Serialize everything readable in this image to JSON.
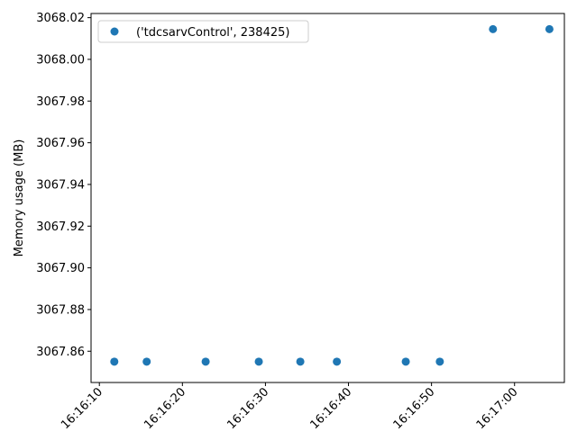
{
  "chart_data": {
    "type": "scatter",
    "title": "",
    "xlabel": "",
    "ylabel": "Memory usage (MB)",
    "x_is_time": true,
    "xlim": [
      "16:16:09",
      "16:17:06"
    ],
    "ylim": [
      3067.845,
      3068.022
    ],
    "x_ticks": [
      "16:16:10",
      "16:16:20",
      "16:16:30",
      "16:16:40",
      "16:16:50",
      "16:17:00"
    ],
    "y_ticks": [
      "3067.86",
      "3067.88",
      "3067.90",
      "3067.92",
      "3067.94",
      "3067.96",
      "3067.98",
      "3068.00",
      "3068.02"
    ],
    "grid": false,
    "legend_position": "top-left",
    "series": [
      {
        "name": "('tdcsarvControl', 238425)",
        "color": "#1f77b4",
        "points": [
          {
            "x": "16:16:11.8",
            "y": 3067.855
          },
          {
            "x": "16:16:15.7",
            "y": 3067.855
          },
          {
            "x": "16:16:22.8",
            "y": 3067.855
          },
          {
            "x": "16:16:29.2",
            "y": 3067.855
          },
          {
            "x": "16:16:34.2",
            "y": 3067.855
          },
          {
            "x": "16:16:38.6",
            "y": 3067.855
          },
          {
            "x": "16:16:46.9",
            "y": 3067.855
          },
          {
            "x": "16:16:51.0",
            "y": 3067.855
          },
          {
            "x": "16:16:57.4",
            "y": 3068.0145
          },
          {
            "x": "16:17:04.2",
            "y": 3068.0145
          }
        ]
      }
    ]
  }
}
